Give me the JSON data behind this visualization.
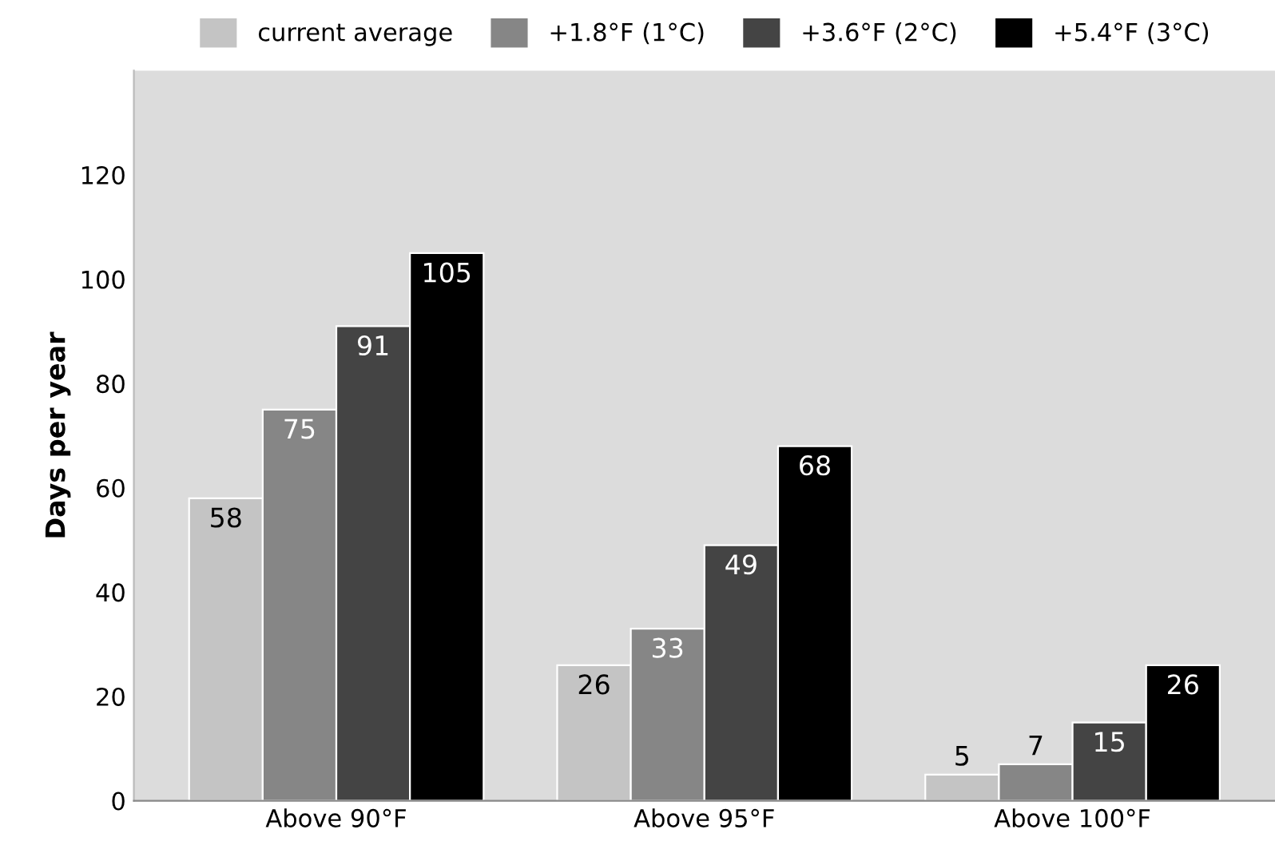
{
  "chart_data": {
    "type": "bar",
    "ylabel": "Days per year",
    "categories": [
      "Above 90°F",
      "Above 95°F",
      "Above 100°F"
    ],
    "series": [
      {
        "name": "current average",
        "color": "#c4c4c4",
        "values": [
          58,
          26,
          5
        ]
      },
      {
        "name": "+1.8°F (1°C)",
        "color": "#868686",
        "values": [
          75,
          33,
          7
        ]
      },
      {
        "name": "+3.6°F (2°C)",
        "color": "#444444",
        "values": [
          91,
          49,
          15
        ]
      },
      {
        "name": "+5.4°F (3°C)",
        "color": "#000000",
        "values": [
          105,
          68,
          26
        ]
      }
    ],
    "ylim": [
      0,
      140
    ],
    "yticks": [
      0,
      20,
      40,
      60,
      80,
      100,
      120
    ],
    "data_labels": true,
    "grid": false,
    "legend": "top"
  }
}
